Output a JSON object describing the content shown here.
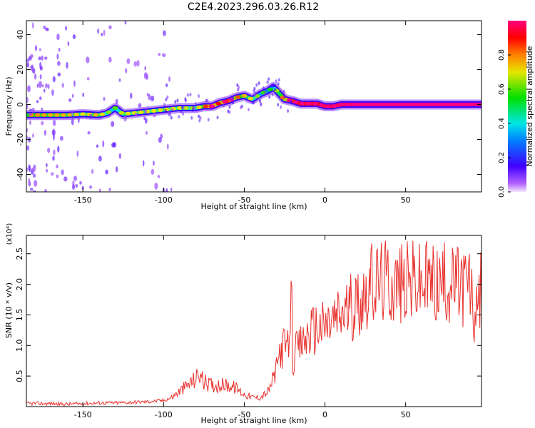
{
  "title": "C2E4.2023.296.03.26.R12",
  "colorbar": {
    "label": "Normalized spectral amplitude",
    "ticks": [
      "0.0",
      "0.2",
      "0.4",
      "0.6",
      "0.8"
    ],
    "tick_values": [
      0.0,
      0.2,
      0.4,
      0.6,
      0.8
    ]
  },
  "chart_data": [
    {
      "type": "heatmap",
      "title": "",
      "xlabel": "Height of straight line (km)",
      "ylabel": "Frequency (Hz)",
      "xlim": [
        -185,
        97
      ],
      "ylim": [
        -50,
        48
      ],
      "xticks": [
        -150,
        -100,
        -50,
        0,
        50
      ],
      "yticks": [
        -40,
        -20,
        0,
        20,
        40
      ],
      "colormap": "rainbow (white-violet-blue-cyan-green-yellow-red-magenta)",
      "colorbar_range": [
        0,
        1
      ],
      "ridge": {
        "x": [
          -185,
          -170,
          -160,
          -150,
          -140,
          -135,
          -130,
          -125,
          -120,
          -110,
          -100,
          -90,
          -80,
          -75,
          -70,
          -65,
          -60,
          -55,
          -50,
          -45,
          -40,
          -35,
          -32,
          -30,
          -28,
          -25,
          -20,
          -15,
          -10,
          -5,
          0,
          5,
          10,
          20,
          40,
          60,
          80,
          97
        ],
        "y": [
          -6,
          -6,
          -6,
          -5.5,
          -6,
          -5,
          -2,
          -5.5,
          -5,
          -4,
          -3,
          -2,
          -2,
          -1,
          -1,
          1,
          2,
          4,
          5,
          3,
          6,
          8,
          10,
          8,
          6,
          3,
          2,
          0.5,
          0.5,
          0.5,
          -1,
          -1,
          0,
          0,
          0,
          0,
          0,
          0
        ],
        "amplitude": [
          0.55,
          0.5,
          0.5,
          0.45,
          0.5,
          0.4,
          0.35,
          0.45,
          0.45,
          0.45,
          0.45,
          0.45,
          0.4,
          0.55,
          0.85,
          0.6,
          0.9,
          0.6,
          0.5,
          0.45,
          0.35,
          0.3,
          0.3,
          0.4,
          0.5,
          0.6,
          0.85,
          0.9,
          0.9,
          0.9,
          0.95,
          0.95,
          0.95,
          1.0,
          1.0,
          1.0,
          1.0,
          1.0
        ]
      }
    },
    {
      "type": "line",
      "title": "",
      "xlabel": "Height of straight line (km)",
      "ylabel": "SNR (10 * v/v)",
      "y_multiplier": "(x10⁴)",
      "xlim": [
        -185,
        97
      ],
      "ylim": [
        0,
        2.8
      ],
      "xticks": [
        -150,
        -100,
        -50,
        0,
        50
      ],
      "yticks": [
        0.5,
        1.0,
        1.5,
        2.0,
        2.5
      ],
      "color": "#e8302c",
      "series": [
        {
          "x": [
            -185,
            -170,
            -160,
            -150,
            -140,
            -130,
            -120,
            -110,
            -100,
            -95,
            -90,
            -85,
            -80,
            -78,
            -75,
            -70,
            -65,
            -60,
            -55,
            -50,
            -45,
            -40,
            -35,
            -30,
            -28,
            -25,
            -22,
            -21,
            -20,
            -18,
            -15,
            -12,
            -10,
            -5,
            0,
            5,
            10,
            15,
            20,
            25,
            30,
            35,
            40,
            45,
            50,
            55,
            60,
            65,
            70,
            75,
            80,
            85,
            90,
            93,
            97
          ],
          "y": [
            0.05,
            0.05,
            0.04,
            0.05,
            0.06,
            0.06,
            0.07,
            0.08,
            0.1,
            0.15,
            0.25,
            0.35,
            0.45,
            0.55,
            0.4,
            0.35,
            0.35,
            0.35,
            0.3,
            0.2,
            0.15,
            0.15,
            0.25,
            0.6,
            0.9,
            1.0,
            0.9,
            2.35,
            0.7,
            0.9,
            1.0,
            1.1,
            1.2,
            1.3,
            1.3,
            1.4,
            1.5,
            1.6,
            1.7,
            1.9,
            2.0,
            2.05,
            2.05,
            2.0,
            2.0,
            2.05,
            2.0,
            2.05,
            2.0,
            2.0,
            2.0,
            2.0,
            2.0,
            1.3,
            2.0
          ]
        }
      ]
    }
  ]
}
